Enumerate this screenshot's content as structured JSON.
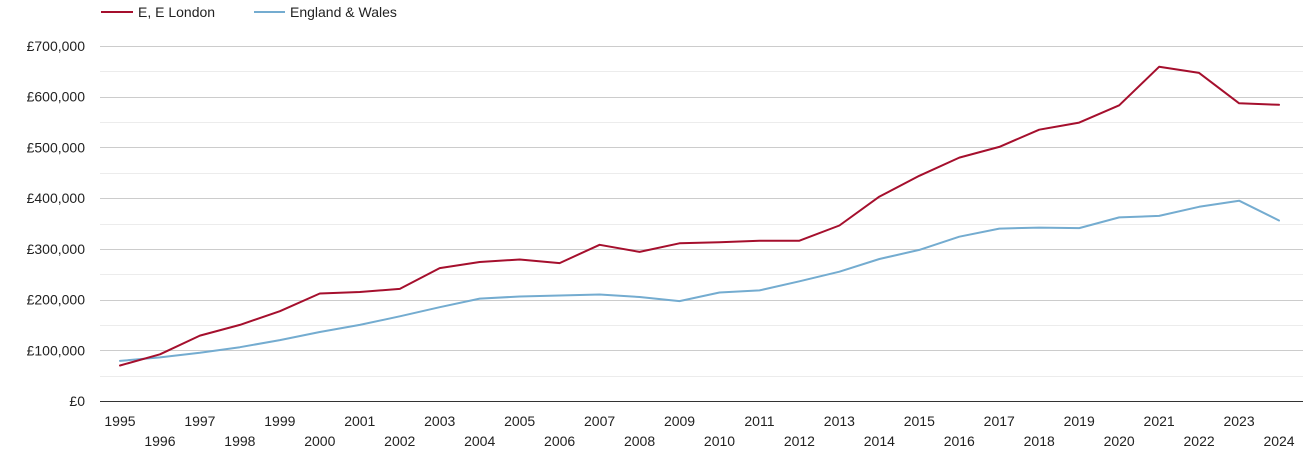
{
  "chart_data": {
    "type": "line",
    "title": "",
    "xlabel": "",
    "ylabel": "",
    "x": [
      1995,
      1996,
      1997,
      1998,
      1999,
      2000,
      2001,
      2002,
      2003,
      2004,
      2005,
      2006,
      2007,
      2008,
      2009,
      2010,
      2011,
      2012,
      2013,
      2014,
      2015,
      2016,
      2017,
      2018,
      2019,
      2020,
      2021,
      2022,
      2023,
      2024
    ],
    "xlim": [
      1994.5,
      2024.6
    ],
    "ylim": [
      0,
      700000
    ],
    "y_ticks": [
      0,
      100000,
      200000,
      300000,
      400000,
      500000,
      600000,
      700000
    ],
    "y_tick_labels": [
      "£0",
      "£100,000",
      "£200,000",
      "£300,000",
      "£400,000",
      "£500,000",
      "£600,000",
      "£700,000"
    ],
    "x_tick_labels": [
      "1995",
      "1996",
      "1997",
      "1998",
      "1999",
      "2000",
      "2001",
      "2002",
      "2003",
      "2004",
      "2005",
      "2006",
      "2007",
      "2008",
      "2009",
      "2010",
      "2011",
      "2012",
      "2013",
      "2014",
      "2015",
      "2016",
      "2017",
      "2018",
      "2019",
      "2020",
      "2021",
      "2022",
      "2023",
      "2024"
    ],
    "grid": true,
    "legend_position": "top-left",
    "series": [
      {
        "name": "E, E London",
        "color": "#a50f2d",
        "values": [
          70000,
          92000,
          129000,
          150000,
          177000,
          212000,
          215000,
          221000,
          262000,
          274000,
          279000,
          272000,
          308000,
          294000,
          311000,
          313000,
          316000,
          316000,
          346000,
          403000,
          444000,
          480000,
          501000,
          535000,
          549000,
          583000,
          659000,
          647000,
          587000,
          584000
        ]
      },
      {
        "name": "England & Wales",
        "color": "#74acd0",
        "values": [
          79000,
          86000,
          95000,
          106000,
          120000,
          136000,
          150000,
          167000,
          185000,
          202000,
          206000,
          208000,
          210000,
          205000,
          197000,
          214000,
          218000,
          236000,
          255000,
          280000,
          298000,
          324000,
          340000,
          342000,
          341000,
          362000,
          365000,
          383000,
          395000,
          356000
        ]
      }
    ]
  }
}
